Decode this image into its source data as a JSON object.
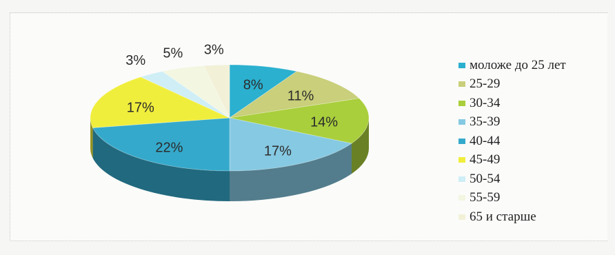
{
  "chart_data": {
    "type": "pie",
    "title": "",
    "categories": [
      "моложе до 25 лет",
      "25-29",
      "30-34",
      "35-39",
      "40-44",
      "45-49",
      "50-54",
      "55-59",
      "65 и старше"
    ],
    "values": [
      8,
      11,
      14,
      17,
      22,
      17,
      3,
      5,
      3
    ],
    "labels": [
      "8%",
      "11%",
      "14%",
      "17%",
      "22%",
      "17%",
      "3%",
      "5%",
      "3%"
    ],
    "colors": [
      "#2bb0cf",
      "#c9cf7a",
      "#a9cf3c",
      "#86c9e2",
      "#35a9cb",
      "#f0ee3c",
      "#cfeef6",
      "#f3f6e0",
      "#f2f1d8"
    ],
    "legend_position": "right",
    "style": "3d"
  }
}
